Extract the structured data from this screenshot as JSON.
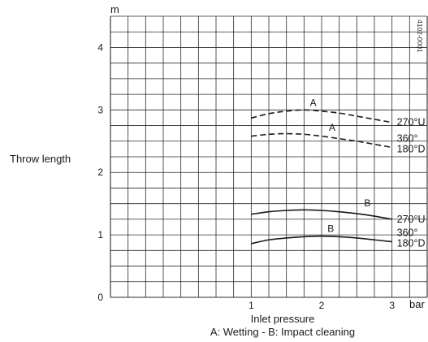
{
  "chart_data": {
    "type": "line",
    "title": "",
    "ylabel": "Throw length",
    "yunit": "m",
    "xlabel": "Inlet pressure",
    "xunit": "bar",
    "caption": "A: Wetting - B: Impact cleaning",
    "figure_code": "4102-0001",
    "xlim": [
      -1,
      3.5
    ],
    "ylim": [
      0,
      4.5
    ],
    "yticks": [
      0,
      1,
      2,
      3,
      4
    ],
    "xticks": [
      1,
      2,
      3
    ],
    "grid": true,
    "series": [
      {
        "letter": "A",
        "end_label": [
          "270°U"
        ],
        "style": "dashed",
        "x": [
          1.0,
          1.25,
          1.5,
          1.75,
          2.0,
          2.25,
          2.5,
          2.75,
          3.0
        ],
        "y": [
          2.87,
          2.94,
          2.98,
          3.0,
          2.98,
          2.95,
          2.9,
          2.85,
          2.8
        ]
      },
      {
        "letter": "A",
        "end_label": [
          "360°",
          "180°D"
        ],
        "style": "dashed",
        "x": [
          1.0,
          1.25,
          1.5,
          1.75,
          2.0,
          2.25,
          2.5,
          2.75,
          3.0
        ],
        "y": [
          2.58,
          2.61,
          2.62,
          2.61,
          2.58,
          2.54,
          2.5,
          2.45,
          2.4
        ]
      },
      {
        "letter": "B",
        "end_label": [
          "270°U"
        ],
        "style": "solid",
        "x": [
          1.0,
          1.25,
          1.5,
          1.75,
          2.0,
          2.25,
          2.5,
          2.75,
          3.0
        ],
        "y": [
          1.33,
          1.37,
          1.39,
          1.4,
          1.39,
          1.37,
          1.34,
          1.3,
          1.25
        ]
      },
      {
        "letter": "B",
        "end_label": [
          "360°",
          "180°D"
        ],
        "style": "solid",
        "x": [
          1.0,
          1.25,
          1.5,
          1.75,
          2.0,
          2.25,
          2.5,
          2.75,
          3.0
        ],
        "y": [
          0.86,
          0.92,
          0.95,
          0.97,
          0.98,
          0.97,
          0.95,
          0.92,
          0.89
        ]
      }
    ]
  }
}
